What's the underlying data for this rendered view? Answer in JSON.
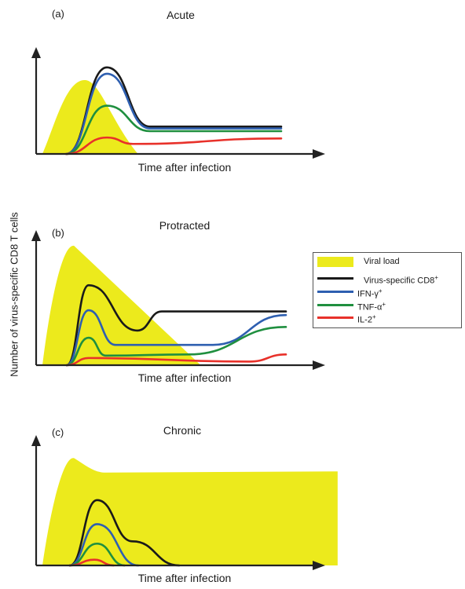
{
  "y_axis_label": "Number of virus-specific CD8 T cells",
  "colors": {
    "Viral load": "#ecea1c",
    "Virus-specific CD8+": "#1a1a1a",
    "IFN-γ+": "#2e5fb0",
    "TNF-α+": "#1f8f3f",
    "IL-2+": "#e8312a"
  },
  "legend": [
    {
      "label": "Viral load",
      "sup": "",
      "kind": "fill"
    },
    {
      "label": "Virus-specific CD8",
      "sup": "+",
      "kind": "line"
    },
    {
      "label": "IFN-γ",
      "sup": "+",
      "kind": "line"
    },
    {
      "label": "TNF-α",
      "sup": "+",
      "kind": "line"
    },
    {
      "label": "IL-2",
      "sup": "+",
      "kind": "line"
    }
  ],
  "chart_data": [
    {
      "type": "line",
      "panel_label": "(a)",
      "title": "Acute",
      "xlabel": "Time after infection",
      "xlim": [
        0,
        10
      ],
      "ylim": [
        0,
        10
      ],
      "viral_load": {
        "x": [
          0,
          0.9,
          1.8,
          2.8,
          4.0
        ],
        "y": [
          0,
          7.3,
          8.1,
          4.0,
          0
        ]
      },
      "series": [
        {
          "name": "Virus-specific CD8+",
          "x": [
            1.0,
            2.7,
            4.5,
            10
          ],
          "y": [
            0,
            9.5,
            3.0,
            3.0
          ]
        },
        {
          "name": "IFN-γ+",
          "x": [
            1.0,
            2.7,
            4.5,
            10
          ],
          "y": [
            0,
            8.8,
            2.8,
            2.8
          ]
        },
        {
          "name": "TNF-α+",
          "x": [
            1.0,
            2.7,
            4.5,
            10
          ],
          "y": [
            0,
            5.3,
            2.5,
            2.5
          ]
        },
        {
          "name": "IL-2+",
          "x": [
            1.0,
            2.7,
            3.8,
            10
          ],
          "y": [
            0,
            1.8,
            1.1,
            1.7
          ]
        }
      ]
    },
    {
      "type": "line",
      "panel_label": "(b)",
      "title": "Protracted",
      "xlabel": "Time after infection",
      "xlim": [
        0,
        10
      ],
      "ylim": [
        0,
        10
      ],
      "viral_load": {
        "x": [
          0,
          1.2,
          6.5
        ],
        "y": [
          0,
          10.0,
          0
        ]
      },
      "series": [
        {
          "name": "Virus-specific CD8+",
          "x": [
            1.0,
            1.9,
            3.9,
            4.9,
            10
          ],
          "y": [
            0,
            6.7,
            2.9,
            4.5,
            4.5
          ]
        },
        {
          "name": "IFN-γ+",
          "x": [
            1.0,
            1.9,
            3.0,
            7.0,
            10
          ],
          "y": [
            0,
            4.6,
            1.7,
            1.7,
            4.2
          ]
        },
        {
          "name": "TNF-α+",
          "x": [
            1.0,
            1.9,
            2.6,
            6.0,
            10
          ],
          "y": [
            0,
            2.3,
            0.8,
            0.9,
            3.2
          ]
        },
        {
          "name": "IL-2+",
          "x": [
            1.0,
            1.9,
            8.5,
            10
          ],
          "y": [
            0,
            0.6,
            0.3,
            0.9
          ]
        }
      ]
    },
    {
      "type": "line",
      "panel_label": "(c)",
      "title": "Chronic",
      "xlabel": "Time after infection",
      "xlim": [
        0,
        10
      ],
      "ylim": [
        0,
        10
      ],
      "viral_load": {
        "x": [
          0,
          1.1,
          2.3,
          10.8
        ],
        "y": [
          0,
          9.3,
          8.1,
          8.1
        ]
      },
      "series": [
        {
          "name": "Virus-specific CD8+",
          "x": [
            1.0,
            2.0,
            3.3,
            5.0
          ],
          "y": [
            0,
            5.7,
            2.1,
            0
          ]
        },
        {
          "name": "IFN-γ+",
          "x": [
            1.0,
            2.0,
            3.5
          ],
          "y": [
            0,
            3.6,
            0
          ]
        },
        {
          "name": "TNF-α+",
          "x": [
            1.0,
            2.0,
            3.0
          ],
          "y": [
            0,
            1.9,
            0
          ]
        },
        {
          "name": "IL-2+",
          "x": [
            1.0,
            1.9,
            2.6
          ],
          "y": [
            0,
            0.5,
            0
          ]
        }
      ]
    }
  ]
}
